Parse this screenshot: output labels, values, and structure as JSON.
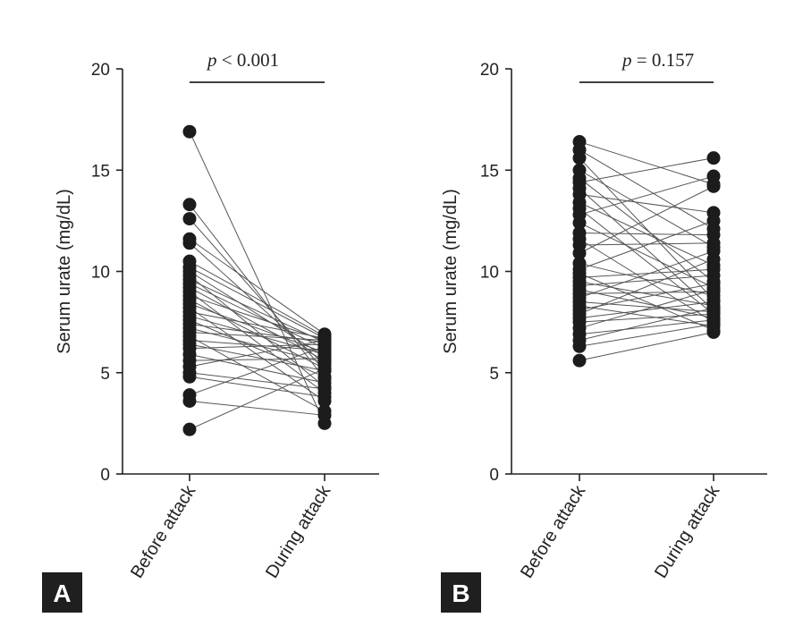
{
  "chart_data": [
    {
      "type": "scatter",
      "panel_label": "A",
      "ylabel": "Serum urate (mg/dL)",
      "ylim": [
        0,
        20
      ],
      "yticks": [
        "0",
        "5",
        "10",
        "15",
        "20"
      ],
      "categories": [
        "Before attack",
        "During attack"
      ],
      "annotation": {
        "prefix": "p",
        "text": " < 0.001"
      },
      "pairs": [
        [
          16.9,
          2.5
        ],
        [
          13.3,
          4.7
        ],
        [
          12.6,
          5.1
        ],
        [
          11.6,
          6.9
        ],
        [
          11.4,
          5.4
        ],
        [
          10.5,
          6.8
        ],
        [
          10.2,
          6.7
        ],
        [
          10.0,
          5.8
        ],
        [
          9.8,
          4.3
        ],
        [
          9.6,
          6.5
        ],
        [
          9.4,
          6.2
        ],
        [
          9.2,
          5.6
        ],
        [
          9.0,
          4.0
        ],
        [
          8.8,
          6.6
        ],
        [
          8.6,
          5.2
        ],
        [
          8.4,
          6.0
        ],
        [
          8.2,
          3.6
        ],
        [
          8.0,
          6.7
        ],
        [
          7.8,
          5.9
        ],
        [
          7.6,
          4.8
        ],
        [
          7.4,
          6.5
        ],
        [
          7.2,
          5.5
        ],
        [
          7.0,
          6.6
        ],
        [
          6.8,
          3.1
        ],
        [
          6.6,
          6.1
        ],
        [
          6.4,
          5.1
        ],
        [
          6.2,
          6.4
        ],
        [
          5.9,
          4.5
        ],
        [
          5.6,
          5.7
        ],
        [
          5.3,
          6.6
        ],
        [
          5.0,
          4.2
        ],
        [
          4.8,
          3.8
        ],
        [
          3.9,
          6.3
        ],
        [
          3.6,
          2.9
        ],
        [
          2.2,
          5.2
        ]
      ]
    },
    {
      "type": "scatter",
      "panel_label": "B",
      "ylabel": "Serum urate (mg/dL)",
      "ylim": [
        0,
        20
      ],
      "yticks": [
        "0",
        "5",
        "10",
        "15",
        "20"
      ],
      "categories": [
        "Before attack",
        "During attack"
      ],
      "annotation": {
        "prefix": "p",
        "text": " = 0.157"
      },
      "pairs": [
        [
          16.4,
          14.3
        ],
        [
          16.0,
          12.1
        ],
        [
          15.6,
          8.6
        ],
        [
          15.0,
          11.2
        ],
        [
          14.6,
          9.5
        ],
        [
          14.4,
          15.6
        ],
        [
          14.1,
          8.1
        ],
        [
          13.8,
          12.9
        ],
        [
          13.4,
          10.3
        ],
        [
          13.1,
          7.9
        ],
        [
          12.8,
          14.7
        ],
        [
          12.4,
          9.2
        ],
        [
          11.9,
          11.8
        ],
        [
          11.6,
          7.5
        ],
        [
          11.3,
          11.4
        ],
        [
          10.9,
          14.2
        ],
        [
          10.4,
          8.8
        ],
        [
          10.1,
          12.5
        ],
        [
          9.9,
          7.1
        ],
        [
          9.7,
          10.1
        ],
        [
          9.5,
          8.3
        ],
        [
          9.3,
          9.8
        ],
        [
          9.1,
          7.7
        ],
        [
          8.9,
          9.0
        ],
        [
          8.7,
          11.0
        ],
        [
          8.5,
          8.0
        ],
        [
          8.3,
          7.3
        ],
        [
          8.1,
          9.4
        ],
        [
          7.9,
          10.6
        ],
        [
          7.7,
          8.5
        ],
        [
          7.5,
          7.9
        ],
        [
          7.2,
          9.1
        ],
        [
          6.9,
          7.6
        ],
        [
          6.6,
          8.2
        ],
        [
          6.3,
          7.4
        ],
        [
          5.6,
          7.0
        ]
      ]
    }
  ]
}
